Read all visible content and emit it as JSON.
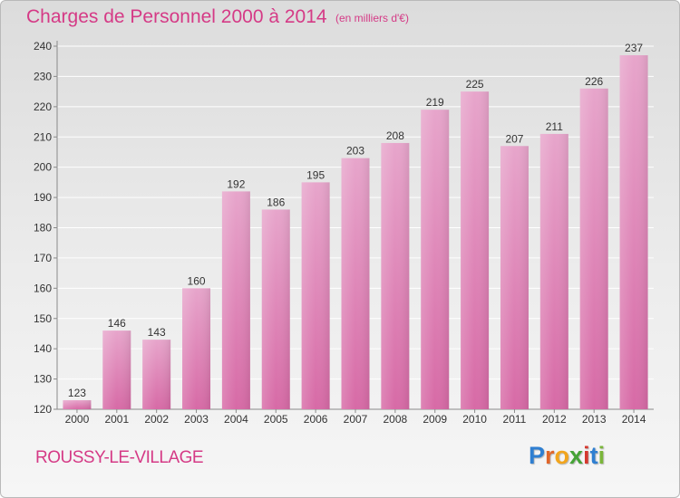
{
  "header": {
    "title": "Charges de Personnel 2000 à 2014",
    "subtitle": "(en milliers d'€)"
  },
  "footer": {
    "place": "ROUSSY-LE-VILLAGE",
    "brand": [
      "P",
      "r",
      "o",
      "x",
      "i",
      "t",
      "i"
    ],
    "brand_colors": [
      "#2f7fd1",
      "#e0662a",
      "#f2a51d",
      "#45a336",
      "#d5382f",
      "#2f7fd1",
      "#7bb63a"
    ]
  },
  "chart_data": {
    "type": "bar",
    "categories": [
      "2000",
      "2001",
      "2002",
      "2003",
      "2004",
      "2005",
      "2006",
      "2007",
      "2008",
      "2009",
      "2010",
      "2011",
      "2012",
      "2013",
      "2014"
    ],
    "values": [
      123,
      146,
      143,
      160,
      192,
      186,
      195,
      203,
      208,
      219,
      225,
      207,
      211,
      226,
      237
    ],
    "title": "Charges de Personnel 2000 à 2014",
    "xlabel": "",
    "ylabel": "",
    "ylim": [
      120,
      240
    ],
    "yticks": [
      120,
      130,
      140,
      150,
      160,
      170,
      180,
      190,
      200,
      210,
      220,
      230,
      240
    ],
    "grid": true,
    "bar_color": "#d76aa6",
    "bar_color_light": "#e7a5cb",
    "grid_color": "#ffffff"
  }
}
